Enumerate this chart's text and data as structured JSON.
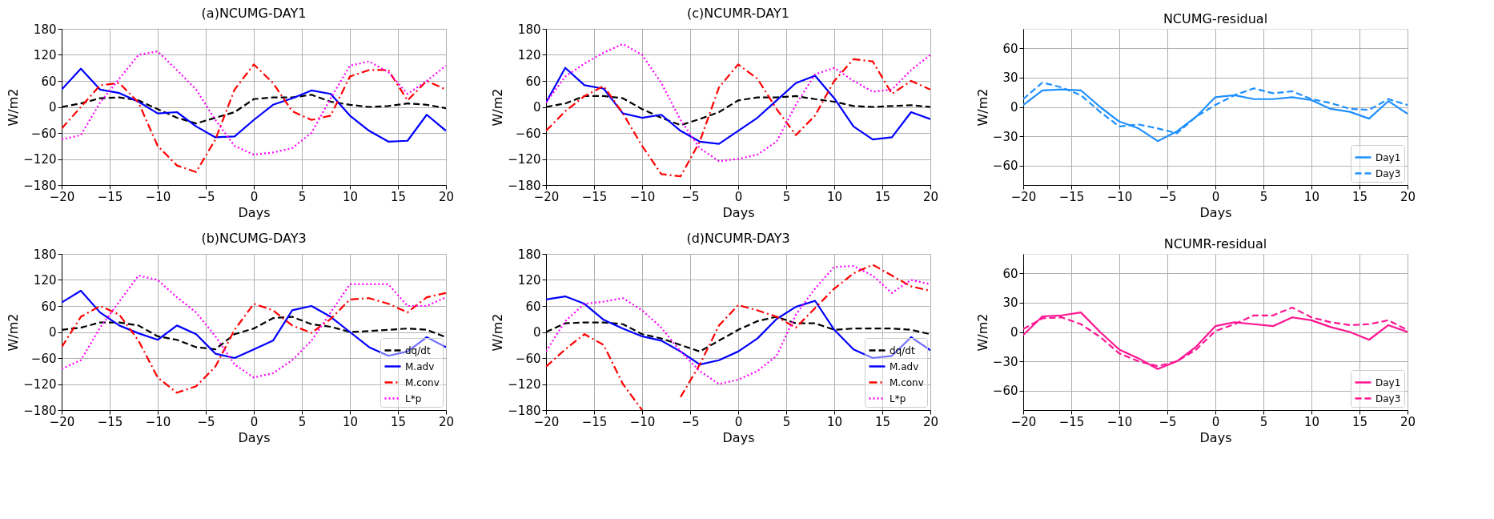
{
  "chart_data": [
    {
      "type": "line",
      "title": "(a)NCUMG-DAY1",
      "xlabel": "Days",
      "ylabel": "W/m2",
      "x": [
        -20,
        -18,
        -16,
        -14,
        -12,
        -10,
        -8,
        -6,
        -4,
        -2,
        0,
        2,
        4,
        6,
        8,
        10,
        12,
        14,
        16,
        18,
        20
      ],
      "xlim": [
        -20,
        20
      ],
      "xticks": [
        -20,
        -15,
        -10,
        -5,
        0,
        5,
        10,
        15,
        20
      ],
      "ylim": [
        -180,
        180
      ],
      "yticks": [
        -180,
        -120,
        -60,
        0,
        60,
        120,
        180
      ],
      "grid": true,
      "legend": false,
      "series": [
        {
          "color": "#000000",
          "line_style": "dashed",
          "values": [
            0,
            8,
            20,
            22,
            15,
            -5,
            -25,
            -38,
            -25,
            -12,
            18,
            22,
            22,
            28,
            12,
            5,
            0,
            2,
            8,
            5,
            -3
          ]
        },
        {
          "color": "#0000ff",
          "line_style": "solid",
          "values": [
            40,
            88,
            40,
            32,
            12,
            -15,
            -12,
            -45,
            -70,
            -68,
            -30,
            5,
            20,
            38,
            30,
            -20,
            -55,
            -80,
            -78,
            -18,
            -55
          ]
        },
        {
          "color": "#ff0000",
          "line_style": "dashdot",
          "values": [
            -50,
            0,
            50,
            55,
            10,
            -90,
            -135,
            -150,
            -75,
            40,
            98,
            55,
            -10,
            -30,
            -20,
            70,
            85,
            85,
            15,
            60,
            40
          ]
        },
        {
          "color": "#ff00ff",
          "line_style": "dotted",
          "values": [
            -75,
            -65,
            10,
            65,
            120,
            128,
            85,
            40,
            -30,
            -90,
            -110,
            -105,
            -95,
            -60,
            20,
            95,
            105,
            80,
            30,
            60,
            95
          ]
        }
      ]
    },
    {
      "type": "line",
      "title": "(c)NCUMR-DAY1",
      "xlabel": "Days",
      "ylabel": "W/m2",
      "x": [
        -20,
        -18,
        -16,
        -14,
        -12,
        -10,
        -8,
        -6,
        -4,
        -2,
        0,
        2,
        4,
        6,
        8,
        10,
        12,
        14,
        16,
        18,
        20
      ],
      "xlim": [
        -20,
        20
      ],
      "xticks": [
        -20,
        -15,
        -10,
        -5,
        0,
        5,
        10,
        15,
        20
      ],
      "ylim": [
        -180,
        180
      ],
      "yticks": [
        -180,
        -120,
        -60,
        0,
        60,
        120,
        180
      ],
      "grid": true,
      "legend": false,
      "series": [
        {
          "color": "#000000",
          "line_style": "dashed",
          "values": [
            0,
            8,
            25,
            25,
            20,
            -5,
            -25,
            -42,
            -28,
            -12,
            15,
            22,
            22,
            25,
            18,
            12,
            2,
            0,
            2,
            4,
            0
          ]
        },
        {
          "color": "#0000ff",
          "line_style": "solid",
          "values": [
            10,
            90,
            50,
            42,
            -15,
            -25,
            -18,
            -55,
            -80,
            -85,
            -55,
            -25,
            15,
            55,
            72,
            20,
            -45,
            -75,
            -70,
            -12,
            -28
          ]
        },
        {
          "color": "#ff0000",
          "line_style": "dashdot",
          "values": [
            -55,
            -10,
            25,
            48,
            -15,
            -90,
            -155,
            -160,
            -80,
            45,
            98,
            65,
            -5,
            -65,
            -20,
            60,
            110,
            105,
            30,
            60,
            40
          ]
        },
        {
          "color": "#ff00ff",
          "line_style": "dotted",
          "values": [
            10,
            70,
            100,
            125,
            145,
            120,
            55,
            -30,
            -95,
            -125,
            -120,
            -110,
            -80,
            5,
            75,
            90,
            60,
            35,
            40,
            85,
            120
          ]
        }
      ]
    },
    {
      "type": "line",
      "title": "NCUMG-residual",
      "xlabel": "Days",
      "ylabel": "W/m2",
      "x": [
        -20,
        -18,
        -16,
        -14,
        -12,
        -10,
        -8,
        -6,
        -4,
        -2,
        0,
        2,
        4,
        6,
        8,
        10,
        12,
        14,
        16,
        18,
        20
      ],
      "xlim": [
        -20,
        20
      ],
      "xticks": [
        -20,
        -15,
        -10,
        -5,
        0,
        5,
        10,
        15,
        20
      ],
      "ylim": [
        -80,
        80
      ],
      "yticks": [
        -60,
        -30,
        0,
        30,
        60
      ],
      "grid": true,
      "legend": "bottom right",
      "series": [
        {
          "name": "Day1",
          "color": "#1e90ff",
          "line_style": "solid",
          "values": [
            2,
            17,
            18,
            17,
            0,
            -15,
            -22,
            -35,
            -25,
            -10,
            10,
            12,
            8,
            8,
            10,
            7,
            -2,
            -5,
            -12,
            6,
            -7
          ]
        },
        {
          "name": "Day3",
          "color": "#1e90ff",
          "line_style": "dashed",
          "values": [
            8,
            25,
            20,
            12,
            -5,
            -20,
            -18,
            -22,
            -27,
            -10,
            2,
            12,
            19,
            14,
            16,
            8,
            4,
            -2,
            -3,
            8,
            2
          ]
        }
      ]
    },
    {
      "type": "line",
      "title": "(b)NCUMG-DAY3",
      "xlabel": "Days",
      "ylabel": "W/m2",
      "x": [
        -20,
        -18,
        -16,
        -14,
        -12,
        -10,
        -8,
        -6,
        -4,
        -2,
        0,
        2,
        4,
        6,
        8,
        10,
        12,
        14,
        16,
        18,
        20
      ],
      "xlim": [
        -20,
        20
      ],
      "xticks": [
        -20,
        -15,
        -10,
        -5,
        0,
        5,
        10,
        15,
        20
      ],
      "ylim": [
        -180,
        180
      ],
      "yticks": [
        -180,
        -120,
        -60,
        0,
        60,
        120,
        180
      ],
      "grid": true,
      "legend": "bottom right",
      "series": [
        {
          "name": "dq/dt",
          "color": "#000000",
          "line_style": "dashed",
          "values": [
            5,
            10,
            22,
            22,
            15,
            -10,
            -18,
            -35,
            -40,
            -5,
            8,
            32,
            35,
            18,
            12,
            0,
            2,
            5,
            8,
            5,
            -12
          ]
        },
        {
          "name": "M.adv",
          "color": "#0000ff",
          "line_style": "solid",
          "values": [
            68,
            95,
            45,
            15,
            -3,
            -18,
            15,
            -5,
            -50,
            -60,
            -40,
            -20,
            50,
            60,
            35,
            0,
            -35,
            -55,
            -45,
            -12,
            -35
          ]
        },
        {
          "name": "M.conv",
          "color": "#ff0000",
          "line_style": "dashdot",
          "values": [
            -35,
            35,
            60,
            40,
            -20,
            -105,
            -140,
            -125,
            -80,
            5,
            65,
            50,
            15,
            -2,
            30,
            75,
            78,
            65,
            45,
            80,
            90
          ]
        },
        {
          "name": "L*p",
          "color": "#ff00ff",
          "line_style": "dotted",
          "values": [
            -85,
            -65,
            10,
            70,
            130,
            120,
            80,
            45,
            -10,
            -75,
            -105,
            -95,
            -65,
            -20,
            45,
            110,
            110,
            110,
            60,
            60,
            80
          ]
        }
      ]
    },
    {
      "type": "line",
      "title": "(d)NCUMR-DAY3",
      "xlabel": "Days",
      "ylabel": "W/m2",
      "x": [
        -20,
        -18,
        -16,
        -14,
        -12,
        -10,
        -8,
        -6,
        -4,
        -2,
        0,
        2,
        4,
        6,
        8,
        10,
        12,
        14,
        16,
        18,
        20
      ],
      "xlim": [
        -20,
        20
      ],
      "xticks": [
        -20,
        -15,
        -10,
        -5,
        0,
        5,
        10,
        15,
        20
      ],
      "ylim": [
        -180,
        180
      ],
      "yticks": [
        -180,
        -120,
        -60,
        0,
        60,
        120,
        180
      ],
      "grid": true,
      "legend": "bottom right",
      "series": [
        {
          "name": "dq/dt",
          "color": "#000000",
          "line_style": "dashed",
          "values": [
            0,
            20,
            22,
            22,
            18,
            -5,
            -15,
            -30,
            -45,
            -20,
            5,
            25,
            35,
            20,
            20,
            5,
            8,
            8,
            8,
            5,
            -5
          ]
        },
        {
          "name": "M.adv",
          "color": "#0000ff",
          "line_style": "solid",
          "values": [
            75,
            82,
            65,
            28,
            8,
            -10,
            -20,
            -45,
            -75,
            -65,
            -45,
            -15,
            30,
            58,
            72,
            5,
            -40,
            -60,
            -55,
            -12,
            -42
          ]
        },
        {
          "name": "M.conv",
          "color": "#ff0000",
          "line_style": "dashdot",
          "values": [
            -80,
            -40,
            -5,
            -30,
            -120,
            -180,
            null,
            -150,
            -75,
            15,
            62,
            50,
            35,
            10,
            55,
            100,
            135,
            155,
            130,
            105,
            95
          ]
        },
        {
          "name": "L*p",
          "color": "#ff00ff",
          "line_style": "dotted",
          "values": [
            -45,
            25,
            65,
            70,
            78,
            50,
            10,
            -45,
            -90,
            -120,
            -110,
            -90,
            -55,
            40,
            100,
            150,
            152,
            130,
            90,
            120,
            110
          ]
        }
      ]
    },
    {
      "type": "line",
      "title": "NCUMR-residual",
      "xlabel": "Days",
      "ylabel": "W/m2",
      "x": [
        -20,
        -18,
        -16,
        -14,
        -12,
        -10,
        -8,
        -6,
        -4,
        -2,
        0,
        2,
        4,
        6,
        8,
        10,
        12,
        14,
        16,
        18,
        20
      ],
      "xlim": [
        -20,
        20
      ],
      "xticks": [
        -20,
        -15,
        -10,
        -5,
        0,
        5,
        10,
        15,
        20
      ],
      "ylim": [
        -80,
        80
      ],
      "yticks": [
        -60,
        -30,
        0,
        30,
        60
      ],
      "grid": true,
      "legend": "bottom right",
      "series": [
        {
          "name": "Day1",
          "color": "#ff1493",
          "line_style": "solid",
          "values": [
            -3,
            16,
            17,
            20,
            0,
            -18,
            -27,
            -38,
            -30,
            -15,
            6,
            10,
            8,
            6,
            15,
            12,
            5,
            0,
            -8,
            7,
            0
          ]
        },
        {
          "name": "Day3",
          "color": "#ff1493",
          "line_style": "dashed",
          "values": [
            3,
            14,
            15,
            8,
            -5,
            -22,
            -30,
            -35,
            -30,
            -18,
            1,
            8,
            17,
            17,
            25,
            15,
            10,
            7,
            8,
            12,
            2
          ]
        }
      ]
    }
  ]
}
